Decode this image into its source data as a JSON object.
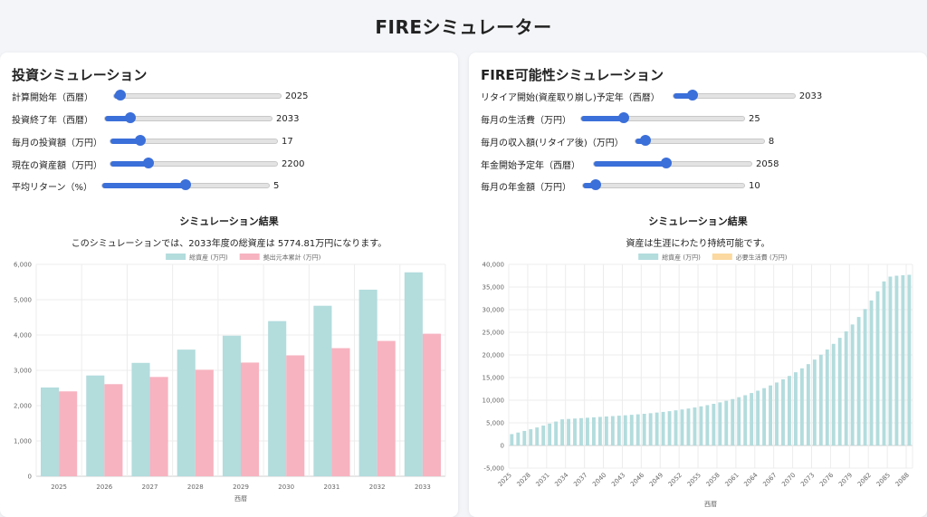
{
  "app_title": "FIREシミュレーター",
  "left_panel": {
    "title": "投資シミュレーション",
    "controls": [
      {
        "label": "計算開始年（西暦）",
        "value": "2025",
        "level": 0.04
      },
      {
        "label": "投資終了年（西暦）",
        "value": "2033",
        "level": 0.15
      },
      {
        "label": "毎月の投資額（万円）",
        "value": "17",
        "level": 0.18
      },
      {
        "label": "現在の資産額（万円）",
        "value": "2200",
        "level": 0.23
      },
      {
        "label": "平均リターン（%）",
        "value": "5",
        "level": 0.5
      }
    ],
    "result_title": "シミュレーション結果",
    "result_message": "このシミュレーションでは、2033年度の総資産は 5774.81万円になります。"
  },
  "right_panel": {
    "title": "FIRE可能性シミュレーション",
    "controls": [
      {
        "label": "リタイア開始(資産取り崩し)予定年（西暦）",
        "value": "2033",
        "level": 0.16
      },
      {
        "label": "毎月の生活費（万円）",
        "value": "25",
        "level": 0.26
      },
      {
        "label": "毎月の収入額(リタイア後)（万円）",
        "value": "8",
        "level": 0.08
      },
      {
        "label": "年金開始予定年（西暦）",
        "value": "2058",
        "level": 0.46
      },
      {
        "label": "毎月の年金額（万円）",
        "value": "10",
        "level": 0.08
      }
    ],
    "result_title": "シミュレーション結果",
    "result_message": "資産は生涯にわたり持続可能です。"
  },
  "colors": {
    "accent": "#3b6fd9",
    "total_assets": "#b3dcdd",
    "principal": "#f7b3c0",
    "living_cost": "#fbd9a0"
  },
  "chart_data": [
    {
      "type": "bar",
      "categories": [
        "2025",
        "2026",
        "2027",
        "2028",
        "2029",
        "2030",
        "2031",
        "2032",
        "2033"
      ],
      "series": [
        {
          "name": "総資産 (万円)",
          "values": [
            2514,
            2854,
            3211,
            3586,
            3980,
            4394,
            4828,
            5284,
            5775
          ]
        },
        {
          "name": "拠出元本累計 (万円)",
          "values": [
            2404,
            2608,
            2812,
            3016,
            3220,
            3424,
            3628,
            3832,
            4036
          ]
        }
      ],
      "xlabel": "西暦",
      "ylim": [
        0,
        6000
      ],
      "yticks": [
        "0",
        "1,000",
        "2,000",
        "3,000",
        "4,000",
        "5,000",
        "6,000"
      ],
      "legend": "top"
    },
    {
      "type": "bar",
      "x_start": 2025,
      "x_end": 2088,
      "xticks": [
        "2025",
        "2028",
        "2031",
        "2034",
        "2037",
        "2040",
        "2043",
        "2046",
        "2049",
        "2052",
        "2055",
        "2058",
        "2061",
        "2064",
        "2067",
        "2070",
        "2073",
        "2076",
        "2079",
        "2082",
        "2085",
        "2088"
      ],
      "series": [
        {
          "name": "総資産 (万円)",
          "values": [
            2514,
            2854,
            3211,
            3586,
            3980,
            4394,
            4828,
            5284,
            5775,
            5860,
            5950,
            6040,
            6130,
            6220,
            6310,
            6400,
            6490,
            6580,
            6670,
            6770,
            6880,
            7000,
            7130,
            7270,
            7420,
            7580,
            7760,
            7950,
            8160,
            8390,
            8640,
            8910,
            9200,
            9520,
            9870,
            10250,
            10660,
            11100,
            11580,
            12100,
            12660,
            13260,
            13910,
            14610,
            15360,
            16170,
            17040,
            17970,
            18970,
            20050,
            21200,
            22440,
            23770,
            25200,
            26730,
            28380,
            30140,
            32030,
            34060,
            36240,
            37300,
            37500,
            37600,
            37700
          ]
        },
        {
          "name": "必要生活費 (万円)",
          "values": []
        }
      ],
      "xlabel": "西暦",
      "ylim": [
        -5000,
        40000
      ],
      "yticks": [
        "-5,000",
        "0",
        "5,000",
        "10,000",
        "15,000",
        "20,000",
        "25,000",
        "30,000",
        "35,000",
        "40,000"
      ],
      "legend": "top"
    }
  ]
}
